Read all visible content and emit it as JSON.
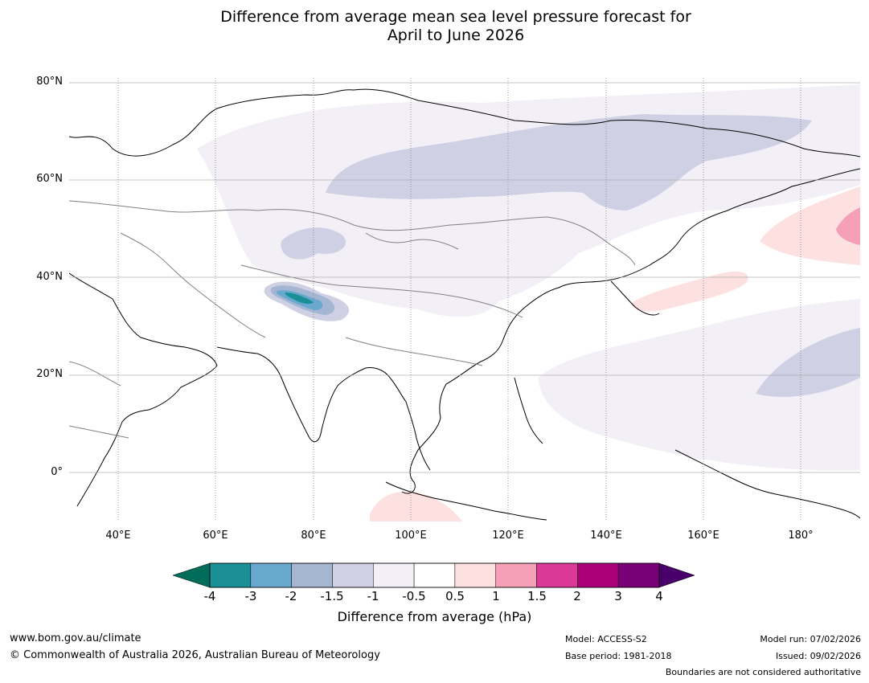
{
  "title_line1": "Difference from average mean sea level pressure forecast for",
  "title_line2": "April to June 2026",
  "map": {
    "lat_labels": [
      "80°N",
      "60°N",
      "40°N",
      "20°N",
      "0°"
    ],
    "lon_labels": [
      "40°E",
      "60°E",
      "80°E",
      "100°E",
      "120°E",
      "140°E",
      "160°E",
      "180°"
    ],
    "graticule": "lines every 20°"
  },
  "colorbar": {
    "ticks": [
      "-4",
      "-3",
      "-2",
      "-1.5",
      "-1",
      "-0.5",
      "0.5",
      "1",
      "1.5",
      "2",
      "3",
      "4"
    ],
    "colors": [
      "#1a8f96",
      "#6aa9cf",
      "#a5b6d3",
      "#cfd0e3",
      "#f3eff7",
      "#ffffff",
      "#fde0e0",
      "#f6a0b8",
      "#db3996",
      "#ac0078",
      "#790077"
    ],
    "under_color": "#016c59",
    "over_color": "#4a006a",
    "label": "Difference from average (hPa)"
  },
  "palette": {
    "land_line": "#000000",
    "border_line": "#808080",
    "grid_line": "#b0b0b0",
    "low_1": "#f3eff7",
    "low_15": "#cfd0e3",
    "low_2": "#a5b6d3",
    "low_3": "#6aa9cf",
    "low_4": "#1a8f96",
    "high_05": "#fde0e0",
    "high_1": "#f6a0b8"
  },
  "footer": {
    "url": "www.bom.gov.au/climate",
    "copyright": "© Commonwealth of Australia 2026, Australian Bureau of Meteorology",
    "model": "Model: ACCESS-S2",
    "base_period": "Base period: 1981-2018",
    "model_run": "Model run: 07/02/2026",
    "issued": "Issued: 09/02/2026",
    "disclaimer": "Boundaries are not considered authoritative"
  }
}
